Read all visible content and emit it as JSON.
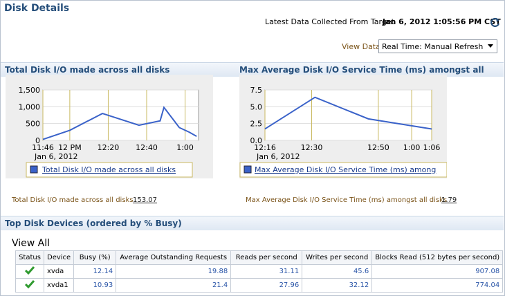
{
  "header": {
    "title": "Disk Details",
    "collected_label": "Latest Data Collected From Target",
    "collected_value": "Jan 6, 2012 1:05:56 PM CST"
  },
  "view_data": {
    "label": "View Data",
    "selected": "Real Time: Manual Refresh"
  },
  "chart_data": [
    {
      "type": "line",
      "title": "Total Disk I/O made across all disks",
      "x": [
        "11:46",
        "12:00",
        "12:17",
        "12:36",
        "12:47",
        "12:49",
        "12:57",
        "1:02",
        "1:06"
      ],
      "x_sublabel": "Jan 6, 2012",
      "series": [
        {
          "name": "Total Disk I/O made across all disks",
          "color": "#3a62c9",
          "values": [
            30,
            300,
            800,
            450,
            580,
            980,
            380,
            250,
            120
          ]
        }
      ],
      "xlim": [
        "11:46",
        "1:07"
      ],
      "xticks": [
        "11:46",
        {
          "value": "12:00",
          "label": "12 PM"
        },
        "12:20",
        "12:40",
        "1:00"
      ],
      "ylim": [
        0,
        1500
      ],
      "yticks": [
        0,
        500,
        {
          "value": 1000,
          "label": "1,000"
        },
        {
          "value": 1500,
          "label": "1,500"
        }
      ],
      "grid": true,
      "summary_label": "Total Disk I/O made across all disks",
      "summary_value": "153.07"
    },
    {
      "type": "line",
      "title": "Max Average Disk I/O Service Time (ms) amongst all disks",
      "x": [
        "12:16",
        "12:31",
        "12:47",
        "1:06"
      ],
      "x_sublabel": "Jan 6, 2012",
      "series": [
        {
          "name": "Max Average Disk I/O Service Time (ms) among",
          "color": "#3a62c9",
          "values": [
            1.7,
            6.4,
            3.2,
            1.7
          ]
        }
      ],
      "xlim": [
        "12:16",
        "1:06"
      ],
      "xticks": [
        "12:16",
        "12:30",
        "12:50",
        "1:00",
        "1:06"
      ],
      "ylim": [
        0,
        7.5
      ],
      "yticks": [
        {
          "value": 0,
          "label": "0.0"
        },
        2.5,
        {
          "value": 5,
          "label": "5.0"
        },
        7.5
      ],
      "grid": true,
      "summary_label": "Max Average Disk I/O Service Time (ms) amongst all disks",
      "summary_value": "1.79"
    }
  ],
  "table": {
    "title": "Top Disk Devices (ordered by % Busy)",
    "view_all": "View All",
    "columns": [
      "Status",
      "Device",
      "Busy (%)",
      "Average Outstanding Requests",
      "Reads per second",
      "Writes per second",
      "Blocks Read (512 bytes per second)"
    ],
    "rows": [
      [
        "xvda",
        12.14,
        19.88,
        31.11,
        45.6,
        907.08
      ],
      [
        "xvda1",
        10.93,
        21.4,
        27.96,
        32.12,
        774.04
      ]
    ]
  }
}
